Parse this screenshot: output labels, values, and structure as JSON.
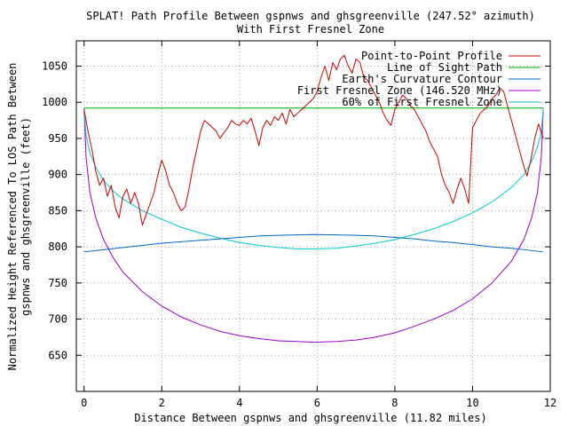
{
  "chart_data": {
    "type": "line",
    "title": "SPLAT! Path Profile Between gspnws and ghsgreenville (247.52° azimuth)",
    "subtitle": "With First Fresnel Zone",
    "xlabel": "Distance Between gspnws and ghsgreenville (11.82 miles)",
    "ylabel_line1": "Normalized Height Referenced To LOS Path Between",
    "ylabel_line2": "gspnws and ghsgreenville (feet)",
    "xlim": [
      -0.2,
      12
    ],
    "ylim": [
      600,
      1085
    ],
    "x_ticks": [
      0,
      2,
      4,
      6,
      8,
      10,
      12
    ],
    "y_ticks": [
      650,
      700,
      750,
      800,
      850,
      900,
      950,
      1000,
      1050
    ],
    "grid": true,
    "legend_position": "top-right",
    "series": [
      {
        "name": "Point-to-Point Profile",
        "color": "#cc0000",
        "x": [
          0,
          0.1,
          0.2,
          0.3,
          0.4,
          0.5,
          0.6,
          0.7,
          0.8,
          0.9,
          1.0,
          1.1,
          1.2,
          1.3,
          1.4,
          1.5,
          1.6,
          1.7,
          1.8,
          1.9,
          2.0,
          2.1,
          2.2,
          2.3,
          2.4,
          2.5,
          2.6,
          2.7,
          2.8,
          2.9,
          3.0,
          3.1,
          3.2,
          3.3,
          3.4,
          3.5,
          3.6,
          3.7,
          3.8,
          3.9,
          4.0,
          4.1,
          4.2,
          4.3,
          4.4,
          4.5,
          4.6,
          4.7,
          4.8,
          4.9,
          5.0,
          5.1,
          5.2,
          5.3,
          5.4,
          5.5,
          5.6,
          5.7,
          5.8,
          5.9,
          6.0,
          6.1,
          6.2,
          6.3,
          6.4,
          6.5,
          6.6,
          6.7,
          6.8,
          6.9,
          7.0,
          7.1,
          7.2,
          7.3,
          7.4,
          7.5,
          7.6,
          7.7,
          7.8,
          7.9,
          8.0,
          8.1,
          8.2,
          8.3,
          8.4,
          8.5,
          8.6,
          8.7,
          8.8,
          8.9,
          9.0,
          9.1,
          9.2,
          9.3,
          9.4,
          9.5,
          9.6,
          9.7,
          9.8,
          9.9,
          10.0,
          10.1,
          10.2,
          10.3,
          10.4,
          10.5,
          10.6,
          10.7,
          10.8,
          10.9,
          11.0,
          11.1,
          11.2,
          11.3,
          11.4,
          11.5,
          11.6,
          11.7,
          11.82
        ],
        "y": [
          990,
          960,
          935,
          905,
          885,
          895,
          870,
          885,
          855,
          840,
          870,
          880,
          860,
          875,
          860,
          830,
          845,
          860,
          875,
          900,
          920,
          905,
          885,
          875,
          860,
          850,
          855,
          880,
          910,
          935,
          960,
          975,
          970,
          965,
          960,
          950,
          958,
          965,
          975,
          970,
          968,
          975,
          970,
          978,
          960,
          940,
          965,
          975,
          968,
          980,
          975,
          985,
          970,
          990,
          980,
          985,
          990,
          995,
          1000,
          1005,
          1015,
          1035,
          1050,
          1030,
          1055,
          1045,
          1060,
          1065,
          1050,
          1040,
          1060,
          1055,
          1035,
          1030,
          1020,
          1010,
          1000,
          985,
          975,
          968,
          990,
          1000,
          1010,
          1005,
          995,
          990,
          980,
          970,
          960,
          945,
          935,
          925,
          900,
          885,
          875,
          860,
          880,
          895,
          880,
          860,
          965,
          975,
          985,
          990,
          995,
          1005,
          1010,
          1020,
          1015,
          995,
          975,
          955,
          935,
          915,
          898,
          920,
          950,
          970,
          950
        ]
      },
      {
        "name": "Line of Sight Path",
        "color": "#00aa00",
        "x": [
          0,
          11.82
        ],
        "y": [
          992,
          992
        ]
      },
      {
        "name": "Earth's Curvature Contour",
        "color": "#0066cc",
        "x": [
          0,
          0.5,
          1,
          1.5,
          2,
          2.5,
          3,
          3.5,
          4,
          4.5,
          5,
          5.5,
          5.91,
          6.5,
          7,
          7.5,
          8,
          8.5,
          9,
          9.5,
          10,
          10.5,
          11,
          11.5,
          11.82
        ],
        "y": [
          793,
          796,
          799,
          802,
          805,
          807,
          809,
          811,
          813,
          815,
          816,
          816.5,
          817,
          816.5,
          816,
          815,
          813,
          811,
          808,
          806,
          803,
          800,
          798,
          795,
          793
        ]
      },
      {
        "name": "First Fresnel Zone (146.520 MHz)",
        "color": "#9900cc",
        "x": [
          0,
          0.05,
          0.15,
          0.3,
          0.5,
          0.75,
          1,
          1.5,
          2,
          2.5,
          3,
          3.5,
          4,
          4.5,
          5,
          5.5,
          5.91,
          6.5,
          7,
          7.5,
          8,
          8.5,
          9,
          9.5,
          10,
          10.5,
          11,
          11.32,
          11.52,
          11.67,
          11.77,
          11.82
        ],
        "y": [
          992,
          925,
          875,
          840,
          810,
          785,
          765,
          738,
          718,
          703,
          692,
          683,
          677,
          673,
          670,
          669,
          668,
          669,
          671,
          675,
          681,
          690,
          700,
          712,
          728,
          750,
          780,
          810,
          840,
          875,
          925,
          992
        ]
      },
      {
        "name": "60% of First Fresnel Zone",
        "color": "#00cccc",
        "x": [
          0,
          0.05,
          0.15,
          0.3,
          0.5,
          0.75,
          1,
          1.5,
          2,
          2.5,
          3,
          3.5,
          4,
          4.5,
          5,
          5.5,
          5.91,
          6.5,
          7,
          7.5,
          8,
          8.5,
          9,
          9.5,
          10,
          10.5,
          11,
          11.32,
          11.52,
          11.67,
          11.77,
          11.82
        ],
        "y": [
          992,
          955,
          930,
          910,
          892,
          877,
          866,
          850,
          838,
          827,
          819,
          812,
          806,
          802,
          799,
          797,
          797,
          798,
          801,
          805,
          810,
          817,
          825,
          835,
          847,
          862,
          882,
          900,
          918,
          938,
          958,
          992
        ]
      }
    ]
  }
}
